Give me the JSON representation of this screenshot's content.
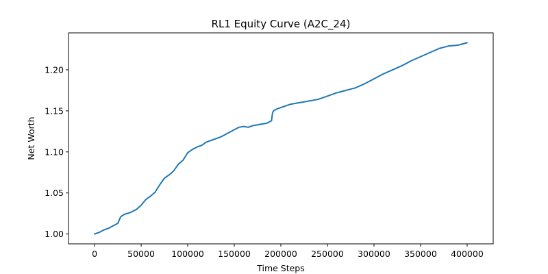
{
  "chart_data": {
    "type": "line",
    "title": "RL1 Equity Curve (A2C_24)",
    "xlabel": "Time Steps",
    "ylabel": "Net Worth",
    "xlim": [
      -28000,
      428000
    ],
    "ylim": [
      0.988,
      1.245
    ],
    "xticks": [
      0,
      50000,
      100000,
      150000,
      200000,
      250000,
      300000,
      350000,
      400000
    ],
    "yticks": [
      1.0,
      1.05,
      1.1,
      1.15,
      1.2
    ],
    "ytick_labels": [
      "1.00",
      "1.05",
      "1.10",
      "1.15",
      "1.20"
    ],
    "grid": false,
    "line_color": "#1f77b4",
    "series": [
      {
        "x": [
          0,
          5000,
          10000,
          15000,
          20000,
          25000,
          28000,
          32000,
          38000,
          45000,
          50000,
          55000,
          60000,
          65000,
          70000,
          75000,
          80000,
          85000,
          90000,
          95000,
          100000,
          105000,
          110000,
          115000,
          120000,
          125000,
          130000,
          135000,
          140000,
          145000,
          150000,
          155000,
          160000,
          165000,
          170000,
          175000,
          180000,
          185000,
          190000,
          191000,
          192000,
          195000,
          200000,
          210000,
          220000,
          230000,
          240000,
          250000,
          260000,
          270000,
          280000,
          290000,
          300000,
          310000,
          320000,
          330000,
          340000,
          350000,
          360000,
          370000,
          380000,
          390000,
          400000
        ],
        "y": [
          1.0,
          1.002,
          1.005,
          1.007,
          1.01,
          1.013,
          1.021,
          1.024,
          1.026,
          1.03,
          1.035,
          1.042,
          1.046,
          1.051,
          1.06,
          1.068,
          1.072,
          1.077,
          1.085,
          1.09,
          1.099,
          1.103,
          1.106,
          1.108,
          1.112,
          1.114,
          1.116,
          1.118,
          1.121,
          1.124,
          1.127,
          1.13,
          1.131,
          1.13,
          1.132,
          1.133,
          1.134,
          1.135,
          1.138,
          1.147,
          1.15,
          1.152,
          1.154,
          1.158,
          1.16,
          1.162,
          1.164,
          1.168,
          1.172,
          1.175,
          1.178,
          1.183,
          1.189,
          1.195,
          1.2,
          1.205,
          1.211,
          1.216,
          1.221,
          1.226,
          1.229,
          1.23,
          1.233
        ]
      }
    ]
  }
}
